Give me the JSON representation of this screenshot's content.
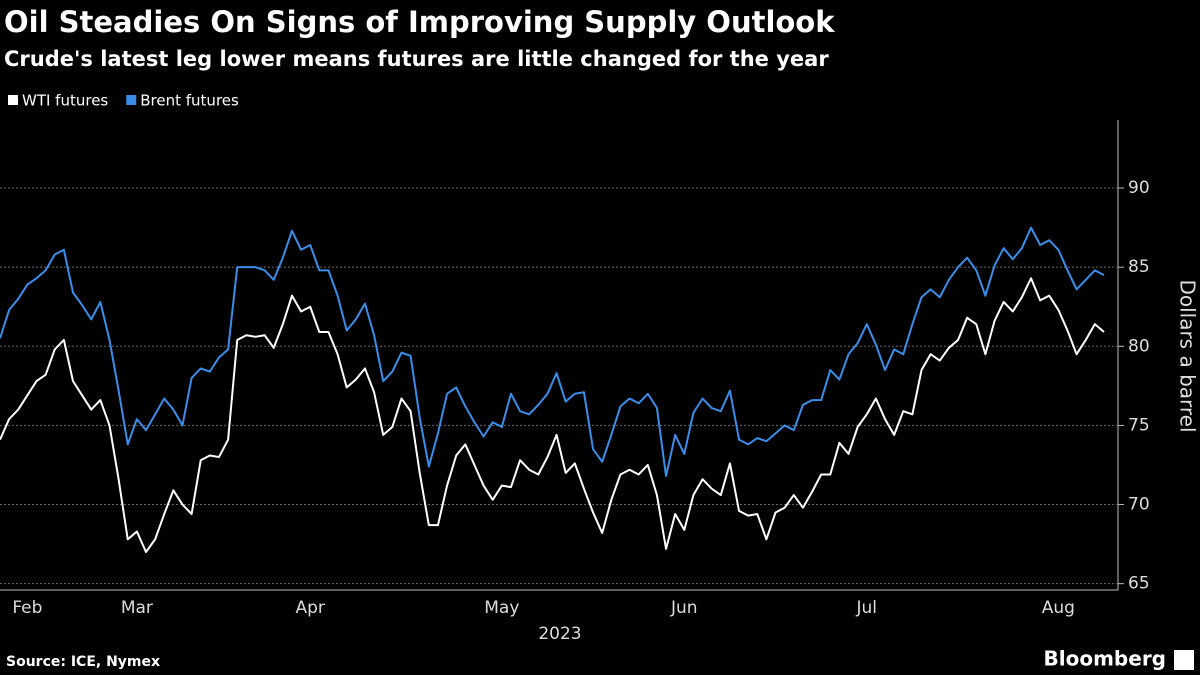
{
  "chart_data": {
    "type": "line",
    "title": "Oil Steadies On Signs of Improving Supply Outlook",
    "subtitle": "Crude's latest leg lower means futures are little changed for the year",
    "xlabel": "2023",
    "ylabel": "Dollars a barrel",
    "categories": [
      null,
      null,
      null,
      "Feb",
      null,
      null,
      null,
      null,
      null,
      null,
      null,
      null,
      null,
      null,
      null,
      "Mar",
      null,
      null,
      null,
      null,
      null,
      null,
      null,
      null,
      null,
      null,
      null,
      null,
      null,
      null,
      null,
      null,
      null,
      null,
      "Apr",
      null,
      null,
      null,
      null,
      null,
      null,
      null,
      null,
      null,
      null,
      null,
      null,
      null,
      null,
      null,
      null,
      null,
      null,
      null,
      null,
      "May",
      null,
      null,
      null,
      null,
      null,
      null,
      null,
      null,
      null,
      null,
      null,
      null,
      null,
      null,
      null,
      null,
      null,
      null,
      null,
      "Jun",
      null,
      null,
      null,
      null,
      null,
      null,
      null,
      null,
      null,
      null,
      null,
      null,
      null,
      null,
      null,
      null,
      null,
      null,
      null,
      "Jul",
      null,
      null,
      null,
      null,
      null,
      null,
      null,
      null,
      null,
      null,
      null,
      null,
      null,
      null,
      null,
      null,
      null,
      null,
      null,
      null,
      "Aug",
      null,
      null,
      null,
      null,
      null
    ],
    "series": [
      {
        "name": "WTI futures",
        "color": "#ffffff",
        "values": [
          74.1,
          75.4,
          76.0,
          76.9,
          77.8,
          78.2,
          79.8,
          80.4,
          77.8,
          76.9,
          76.0,
          76.6,
          75.0,
          71.6,
          67.8,
          68.3,
          67.0,
          67.8,
          69.4,
          70.9,
          70.0,
          69.4,
          72.8,
          73.1,
          73.0,
          74.1,
          80.4,
          80.7,
          80.6,
          80.7,
          79.9,
          81.4,
          83.2,
          82.2,
          82.5,
          80.9,
          80.9,
          79.5,
          77.4,
          77.9,
          78.6,
          77.1,
          74.4,
          74.9,
          76.7,
          75.9,
          72.0,
          68.7,
          68.7,
          71.2,
          73.1,
          73.8,
          72.5,
          71.2,
          70.3,
          71.2,
          71.1,
          72.8,
          72.2,
          71.9,
          73.0,
          74.4,
          72.0,
          72.6,
          71.0,
          69.5,
          68.2,
          70.3,
          71.9,
          72.2,
          71.9,
          72.5,
          70.6,
          67.2,
          69.4,
          68.4,
          70.6,
          71.6,
          71.0,
          70.6,
          72.6,
          69.6,
          69.3,
          69.4,
          67.8,
          69.5,
          69.8,
          70.6,
          69.8,
          70.8,
          71.9,
          71.9,
          73.9,
          73.2,
          74.9,
          75.7,
          76.7,
          75.4,
          74.4,
          75.9,
          75.7,
          78.5,
          79.5,
          79.1,
          79.9,
          80.4,
          81.8,
          81.4,
          79.5,
          81.6,
          82.8,
          82.2,
          83.1,
          84.3,
          82.9,
          83.2,
          82.3,
          81.0,
          79.5,
          80.4,
          81.4,
          80.9
        ]
      },
      {
        "name": "Brent futures",
        "color": "#3b8ee8",
        "values": [
          80.5,
          82.3,
          83.0,
          83.9,
          84.3,
          84.8,
          85.8,
          86.1,
          83.4,
          82.6,
          81.7,
          82.8,
          80.4,
          77.2,
          73.8,
          75.4,
          74.7,
          75.7,
          76.7,
          76.0,
          75.0,
          78.0,
          78.6,
          78.4,
          79.3,
          79.8,
          85.0,
          85.0,
          85.0,
          84.8,
          84.2,
          85.6,
          87.3,
          86.1,
          86.4,
          84.8,
          84.8,
          83.2,
          81.0,
          81.7,
          82.7,
          80.7,
          77.8,
          78.4,
          79.6,
          79.4,
          75.5,
          72.4,
          74.5,
          77.0,
          77.4,
          76.2,
          75.2,
          74.3,
          75.2,
          74.9,
          77.0,
          75.9,
          75.7,
          76.3,
          77.0,
          78.3,
          76.5,
          77.0,
          77.1,
          73.5,
          72.7,
          74.4,
          76.2,
          76.7,
          76.4,
          77.0,
          76.1,
          71.8,
          74.4,
          73.2,
          75.8,
          76.7,
          76.1,
          75.9,
          77.2,
          74.1,
          73.8,
          74.2,
          74.0,
          74.5,
          75.0,
          74.7,
          76.3,
          76.6,
          76.6,
          78.5,
          77.9,
          79.5,
          80.2,
          81.4,
          80.1,
          78.5,
          79.8,
          79.5,
          81.4,
          83.1,
          83.6,
          83.1,
          84.2,
          85.0,
          85.6,
          84.8,
          83.2,
          85.1,
          86.2,
          85.5,
          86.2,
          87.5,
          86.4,
          86.7,
          86.1,
          84.8,
          83.6,
          84.2,
          84.8,
          84.5
        ]
      }
    ],
    "ylim": [
      64.6,
      94.3
    ],
    "yticks": [
      65,
      70,
      75,
      80,
      85,
      90
    ],
    "grid": true
  },
  "footer": {
    "source": "Source: ICE, Nymex",
    "brand": "Bloomberg"
  }
}
